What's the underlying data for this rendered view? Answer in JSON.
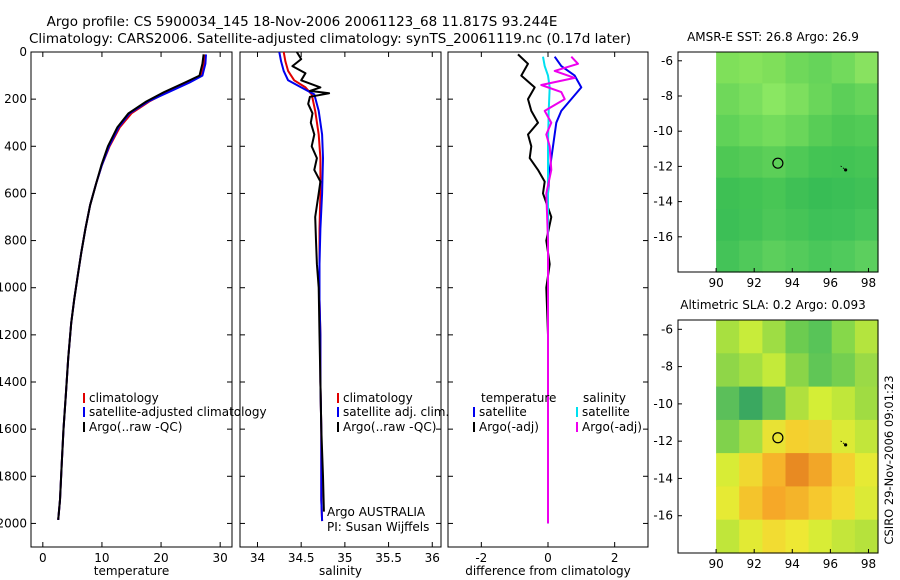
{
  "titles": {
    "line1": "Argo profile: CS 5900034_145 18-Nov-2006 20061123_68 11.817S 93.244E",
    "line2": "Climatology: CARS2006. Satellite-adjusted climatology: synTS_20061119.nc (0.17d later)"
  },
  "side_text": "CSIRO 29-Nov-2006 09:01:23",
  "colors": {
    "red": "#e00000",
    "blue": "#0000ee",
    "black": "#000000",
    "cyan": "#00e0f0",
    "magenta": "#ee00ee"
  },
  "chart_data": [
    {
      "type": "line",
      "name": "temperature-panel",
      "xlabel": "temperature",
      "ylabel": "",
      "xlim": [
        -2,
        32
      ],
      "ylim": [
        0,
        2100
      ],
      "y_reversed": true,
      "xticks": [
        "0",
        "10",
        "20",
        "30"
      ],
      "xtick_values": [
        0,
        10,
        20,
        30
      ],
      "yticks": [
        "0",
        "200",
        "400",
        "600",
        "800",
        "1000",
        "1200",
        "1400",
        "1600",
        "1800",
        "2000"
      ],
      "ytick_values": [
        0,
        200,
        400,
        600,
        800,
        1000,
        1200,
        1400,
        1600,
        1800,
        2000
      ],
      "legend": [
        {
          "label": "climatology",
          "color": "red"
        },
        {
          "label": "satellite-adjusted climatology",
          "color": "blue"
        },
        {
          "label": "Argo(..raw -QC)",
          "color": "black"
        }
      ],
      "series": [
        {
          "name": "climatology",
          "color": "red",
          "x": [
            27.4,
            27.3,
            26.8,
            24.5,
            21,
            18,
            15,
            13,
            11.3,
            10,
            9,
            8,
            7.2,
            6.5,
            5.9,
            5.3,
            4.8,
            4.3,
            3.9,
            3.5,
            3.2,
            2.9,
            2.6
          ],
          "y": [
            10,
            50,
            100,
            130,
            170,
            210,
            260,
            320,
            400,
            480,
            560,
            650,
            750,
            850,
            950,
            1050,
            1150,
            1300,
            1450,
            1600,
            1750,
            1900,
            1985
          ]
        },
        {
          "name": "satellite-adjusted climatology",
          "color": "blue",
          "x": [
            27.6,
            27.5,
            27,
            24.8,
            21.3,
            17.8,
            14.7,
            12.8,
            11.2,
            10,
            9,
            8,
            7.2,
            6.5,
            5.9,
            5.3,
            4.8,
            4.3,
            3.9,
            3.5,
            3.2,
            2.9,
            2.6
          ],
          "y": [
            10,
            50,
            100,
            130,
            170,
            210,
            260,
            320,
            400,
            480,
            560,
            650,
            750,
            850,
            950,
            1050,
            1150,
            1300,
            1450,
            1600,
            1750,
            1900,
            1985
          ]
        },
        {
          "name": "Argo",
          "color": "black",
          "x": [
            27.2,
            27,
            26.5,
            24,
            20.5,
            17.5,
            14.5,
            12.6,
            11,
            9.9,
            9,
            8,
            7.2,
            6.5,
            5.9,
            5.3,
            4.8,
            4.3,
            3.9,
            3.5,
            3.2,
            2.9,
            2.6
          ],
          "y": [
            10,
            50,
            100,
            130,
            170,
            210,
            260,
            320,
            400,
            480,
            560,
            650,
            750,
            850,
            950,
            1050,
            1150,
            1300,
            1450,
            1600,
            1750,
            1900,
            1985
          ]
        }
      ]
    },
    {
      "type": "line",
      "name": "salinity-panel",
      "xlabel": "salinity",
      "xlim": [
        33.8,
        36.1
      ],
      "ylim": [
        0,
        2100
      ],
      "y_reversed": true,
      "xticks": [
        "34",
        "34.5",
        "35",
        "35.5",
        "36"
      ],
      "xtick_values": [
        34,
        34.5,
        35,
        35.5,
        36
      ],
      "legend": [
        {
          "label": "climatology",
          "color": "red"
        },
        {
          "label": "satellite adj. clim.",
          "color": "blue"
        },
        {
          "label": "Argo(..raw -QC)",
          "color": "black"
        }
      ],
      "annotation": [
        "Argo AUSTRALIA",
        "PI: Susan Wijffels"
      ],
      "series": [
        {
          "name": "climatology",
          "color": "red",
          "x": [
            34.3,
            34.32,
            34.35,
            34.42,
            34.55,
            34.62,
            34.66,
            34.7,
            34.72,
            34.72,
            34.71,
            34.71,
            34.71,
            34.72,
            34.72,
            34.73,
            34.73,
            34.73,
            34.74
          ],
          "y": [
            0,
            40,
            80,
            120,
            150,
            180,
            250,
            350,
            450,
            600,
            750,
            900,
            1050,
            1200,
            1400,
            1600,
            1800,
            1900,
            1990
          ]
        },
        {
          "name": "satellite adj. clim.",
          "color": "blue",
          "x": [
            34.25,
            34.27,
            34.3,
            34.35,
            34.5,
            34.65,
            34.7,
            34.74,
            34.75,
            34.74,
            34.72,
            34.71,
            34.71,
            34.72,
            34.72,
            34.73,
            34.73,
            34.73,
            34.74
          ],
          "y": [
            0,
            40,
            80,
            120,
            150,
            180,
            250,
            350,
            450,
            600,
            750,
            900,
            1050,
            1200,
            1400,
            1600,
            1800,
            1900,
            1990
          ]
        },
        {
          "name": "Argo",
          "color": "black",
          "x": [
            34.45,
            34.5,
            34.4,
            34.55,
            34.5,
            34.72,
            34.6,
            34.82,
            34.6,
            34.58,
            34.63,
            34.61,
            34.65,
            34.62,
            34.68,
            34.65,
            34.72,
            34.7,
            34.66,
            34.67,
            34.68,
            34.7,
            34.71,
            34.72,
            34.73,
            34.75,
            34.76
          ],
          "y": [
            0,
            30,
            60,
            90,
            120,
            150,
            165,
            175,
            190,
            220,
            260,
            300,
            350,
            400,
            450,
            500,
            550,
            600,
            700,
            800,
            900,
            1000,
            1200,
            1400,
            1600,
            1800,
            1950
          ]
        }
      ]
    },
    {
      "type": "line",
      "name": "difference-panel",
      "xlabel": "difference from climatology",
      "xlim": [
        -3,
        3
      ],
      "ylim": [
        0,
        2100
      ],
      "y_reversed": true,
      "xticks": [
        "-2",
        "0",
        "2"
      ],
      "xtick_values": [
        -2,
        0,
        2
      ],
      "legend": [
        {
          "label": "temperature",
          "color": ""
        },
        {
          "label": "satellite",
          "color": "blue"
        },
        {
          "label": "Argo(-adj)",
          "color": "black"
        },
        {
          "label": "salinity",
          "color": ""
        },
        {
          "label": "satellite",
          "color": "cyan"
        },
        {
          "label": "Argo(-adj)",
          "color": "magenta"
        }
      ],
      "series": [
        {
          "name": "temperature satellite",
          "color": "blue",
          "x": [
            0.2,
            0.4,
            0.8,
            1.0,
            0.7,
            0.4,
            0.25,
            0.15,
            0.05,
            0,
            0,
            0,
            0,
            0
          ],
          "y": [
            20,
            60,
            100,
            150,
            200,
            250,
            300,
            400,
            500,
            600,
            800,
            1200,
            1600,
            2000
          ]
        },
        {
          "name": "temperature Argo(-adj)",
          "color": "black",
          "x": [
            -0.9,
            -0.6,
            -0.8,
            -0.4,
            -0.6,
            -0.5,
            -0.3,
            -0.6,
            -0.5,
            -0.55,
            -0.3,
            -0.1,
            -0.15,
            0.1,
            -0.05,
            0.05,
            -0.05,
            0,
            0,
            0
          ],
          "y": [
            10,
            50,
            100,
            150,
            200,
            250,
            300,
            350,
            400,
            450,
            500,
            550,
            600,
            700,
            800,
            900,
            1000,
            1200,
            1600,
            2000
          ]
        },
        {
          "name": "salinity satellite",
          "color": "cyan",
          "x": [
            -0.15,
            -0.1,
            0,
            0.05,
            0.02,
            0,
            0,
            0,
            0
          ],
          "y": [
            20,
            60,
            100,
            150,
            250,
            400,
            800,
            1400,
            2000
          ]
        },
        {
          "name": "salinity Argo(-adj)",
          "color": "magenta",
          "x": [
            0.7,
            0.9,
            0.2,
            0.8,
            -0.2,
            0.4,
            0.5,
            -0.1,
            0.1,
            -0.05,
            0.05,
            0.1,
            -0.05,
            0,
            0,
            0
          ],
          "y": [
            20,
            50,
            80,
            110,
            140,
            170,
            200,
            250,
            300,
            350,
            400,
            500,
            600,
            800,
            1400,
            2000
          ]
        }
      ]
    },
    {
      "type": "heatmap",
      "name": "sst-map",
      "title": "AMSR-E SST: 26.8 Argo: 26.9",
      "xlim": [
        88,
        98.5
      ],
      "ylim": [
        -18,
        -5.5
      ],
      "xticks": [
        "90",
        "92",
        "94",
        "96",
        "98"
      ],
      "xtick_values": [
        90,
        92,
        94,
        96,
        98
      ],
      "yticks": [
        "-6",
        "-8",
        "-10",
        "-12",
        "-14",
        "-16"
      ],
      "ytick_values": [
        -6,
        -8,
        -10,
        -12,
        -14,
        -16
      ],
      "data_xlim": [
        90,
        98.5
      ],
      "float_position": {
        "lon": 93.244,
        "lat": -11.817
      },
      "track_point": {
        "lon": 96.8,
        "lat": -12.2
      },
      "grid_colors": [
        [
          "#7fe05a",
          "#86e35c",
          "#7fdf5a",
          "#6fd85a",
          "#66d45a",
          "#72da5c",
          "#88e260"
        ],
        [
          "#6fd85a",
          "#7ade5e",
          "#8ae762",
          "#7ddf5e",
          "#6ad65a",
          "#5ccf58",
          "#66d45a"
        ],
        [
          "#60d258",
          "#6bd85a",
          "#74dc5c",
          "#6ad65a",
          "#58cd56",
          "#4ec854",
          "#52cb56"
        ],
        [
          "#4ec854",
          "#55cb56",
          "#5ccf58",
          "#4fc956",
          "#44c454",
          "#42c354",
          "#46c555"
        ],
        [
          "#3ec054",
          "#42c354",
          "#48c655",
          "#3fc055",
          "#38bd55",
          "#3bbf56",
          "#40c156"
        ],
        [
          "#3cbf56",
          "#42c256",
          "#4cc758",
          "#46c457",
          "#3ec158",
          "#40c259",
          "#48c65a"
        ],
        [
          "#44c358",
          "#50c95a",
          "#5ccf5c",
          "#54cb5b",
          "#4ac75a",
          "#50ca5c",
          "#5ccf5e"
        ]
      ]
    },
    {
      "type": "heatmap",
      "name": "sla-map",
      "title": "Altimetric SLA: 0.2 Argo: 0.093",
      "xlim": [
        88,
        98.5
      ],
      "ylim": [
        -18,
        -5.5
      ],
      "xticks": [
        "90",
        "92",
        "94",
        "96",
        "98"
      ],
      "xtick_values": [
        90,
        92,
        94,
        96,
        98
      ],
      "yticks": [
        "-6",
        "-8",
        "-10",
        "-12",
        "-14",
        "-16"
      ],
      "ytick_values": [
        -6,
        -8,
        -10,
        -12,
        -14,
        -16
      ],
      "data_xlim": [
        90,
        98.5
      ],
      "float_position": {
        "lon": 93.244,
        "lat": -11.817
      },
      "track_point": {
        "lon": 96.8,
        "lat": -12.2
      },
      "grid_colors": [
        [
          "#a8e040",
          "#c8ec3a",
          "#9edd44",
          "#6ccc50",
          "#58c458",
          "#86d84a",
          "#b4e43e"
        ],
        [
          "#8fd648",
          "#a4df42",
          "#c4ea3a",
          "#8ad548",
          "#60c656",
          "#74cf50",
          "#9ada46"
        ],
        [
          "#5bbf5a",
          "#3aa860",
          "#64c456",
          "#b0e03e",
          "#d4ee36",
          "#c0e73a",
          "#a0dc42"
        ],
        [
          "#80d24c",
          "#a6de42",
          "#e8e234",
          "#f4d02e",
          "#eed434",
          "#dcea36",
          "#c2e63a"
        ],
        [
          "#d8ec36",
          "#f0d830",
          "#f6b42a",
          "#e88a22",
          "#f2a628",
          "#f4d030",
          "#e6ea34"
        ],
        [
          "#e6ea34",
          "#f4c42c",
          "#f6a828",
          "#f4b42a",
          "#f6c82e",
          "#f2dc32",
          "#dcea36"
        ],
        [
          "#c0e63a",
          "#e2ea34",
          "#f2dc32",
          "#eee834",
          "#d8ec36",
          "#c4e63a",
          "#b6e23c"
        ]
      ]
    }
  ]
}
